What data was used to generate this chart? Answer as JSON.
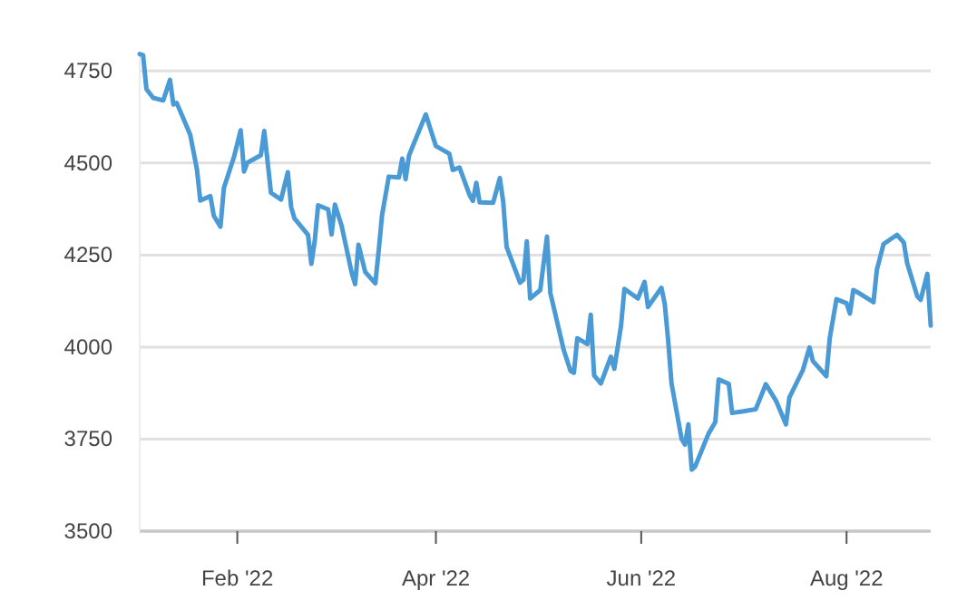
{
  "chart_data": {
    "type": "line",
    "x": [
      "2022-01-03",
      "2022-01-04",
      "2022-01-05",
      "2022-01-07",
      "2022-01-10",
      "2022-01-12",
      "2022-01-13",
      "2022-01-14",
      "2022-01-18",
      "2022-01-20",
      "2022-01-21",
      "2022-01-24",
      "2022-01-25",
      "2022-01-27",
      "2022-01-28",
      "2022-01-31",
      "2022-02-02",
      "2022-02-03",
      "2022-02-04",
      "2022-02-08",
      "2022-02-09",
      "2022-02-10",
      "2022-02-11",
      "2022-02-14",
      "2022-02-16",
      "2022-02-17",
      "2022-02-18",
      "2022-02-22",
      "2022-02-23",
      "2022-02-24",
      "2022-02-25",
      "2022-02-28",
      "2022-03-01",
      "2022-03-02",
      "2022-03-04",
      "2022-03-07",
      "2022-03-08",
      "2022-03-09",
      "2022-03-11",
      "2022-03-14",
      "2022-03-15",
      "2022-03-16",
      "2022-03-18",
      "2022-03-21",
      "2022-03-22",
      "2022-03-23",
      "2022-03-24",
      "2022-03-25",
      "2022-03-29",
      "2022-03-30",
      "2022-04-01",
      "2022-04-05",
      "2022-04-06",
      "2022-04-08",
      "2022-04-11",
      "2022-04-12",
      "2022-04-13",
      "2022-04-14",
      "2022-04-18",
      "2022-04-20",
      "2022-04-21",
      "2022-04-22",
      "2022-04-26",
      "2022-04-27",
      "2022-04-28",
      "2022-04-29",
      "2022-05-02",
      "2022-05-04",
      "2022-05-05",
      "2022-05-09",
      "2022-05-11",
      "2022-05-12",
      "2022-05-13",
      "2022-05-16",
      "2022-05-17",
      "2022-05-18",
      "2022-05-20",
      "2022-05-23",
      "2022-05-24",
      "2022-05-26",
      "2022-05-27",
      "2022-05-31",
      "2022-06-02",
      "2022-06-03",
      "2022-06-07",
      "2022-06-08",
      "2022-06-09",
      "2022-06-10",
      "2022-06-13",
      "2022-06-14",
      "2022-06-15",
      "2022-06-16",
      "2022-06-17",
      "2022-06-21",
      "2022-06-23",
      "2022-06-24",
      "2022-06-27",
      "2022-06-28",
      "2022-07-01",
      "2022-07-05",
      "2022-07-08",
      "2022-07-11",
      "2022-07-14",
      "2022-07-15",
      "2022-07-19",
      "2022-07-21",
      "2022-07-22",
      "2022-07-26",
      "2022-07-27",
      "2022-07-29",
      "2022-08-01",
      "2022-08-02",
      "2022-08-03",
      "2022-08-05",
      "2022-08-09",
      "2022-08-10",
      "2022-08-12",
      "2022-08-16",
      "2022-08-18",
      "2022-08-19",
      "2022-08-22",
      "2022-08-23",
      "2022-08-25",
      "2022-08-26"
    ],
    "series": [
      {
        "color": "#4a9ad6",
        "values": [
          4796,
          4793,
          4701,
          4677,
          4670,
          4726,
          4659,
          4663,
          4577,
          4483,
          4398,
          4410,
          4357,
          4327,
          4432,
          4516,
          4589,
          4477,
          4501,
          4521,
          4587,
          4504,
          4419,
          4401,
          4475,
          4380,
          4349,
          4305,
          4226,
          4288,
          4385,
          4374,
          4306,
          4387,
          4329,
          4201,
          4171,
          4278,
          4204,
          4173,
          4262,
          4358,
          4463,
          4461,
          4512,
          4456,
          4520,
          4543,
          4632,
          4603,
          4546,
          4525,
          4481,
          4488,
          4413,
          4397,
          4446,
          4393,
          4392,
          4459,
          4394,
          4272,
          4175,
          4183,
          4287,
          4132,
          4155,
          4300,
          4147,
          3991,
          3935,
          3930,
          4024,
          4008,
          4088,
          3923,
          3901,
          3974,
          3941,
          4058,
          4158,
          4132,
          4177,
          4109,
          4161,
          4116,
          4018,
          3901,
          3750,
          3735,
          3790,
          3667,
          3675,
          3765,
          3796,
          3912,
          3900,
          3821,
          3825,
          3831,
          3899,
          3855,
          3790,
          3863,
          3937,
          3999,
          3962,
          3921,
          4024,
          4130,
          4119,
          4091,
          4155,
          4145,
          4122,
          4210,
          4280,
          4305,
          4284,
          4228,
          4138,
          4128,
          4199,
          4058
        ]
      }
    ],
    "xlim": [
      "2022-01-03",
      "2022-08-26"
    ],
    "xticks": [
      {
        "value": "2022-02-01",
        "label": "Feb '22"
      },
      {
        "value": "2022-04-01",
        "label": "Apr '22"
      },
      {
        "value": "2022-06-01",
        "label": "Jun '22"
      },
      {
        "value": "2022-08-01",
        "label": "Aug '22"
      }
    ],
    "ylim": [
      3500,
      4800
    ],
    "yticks": [
      3500,
      3750,
      4000,
      4250,
      4500,
      4750
    ],
    "grid": "y",
    "marker": "none",
    "line_style": "solid"
  }
}
